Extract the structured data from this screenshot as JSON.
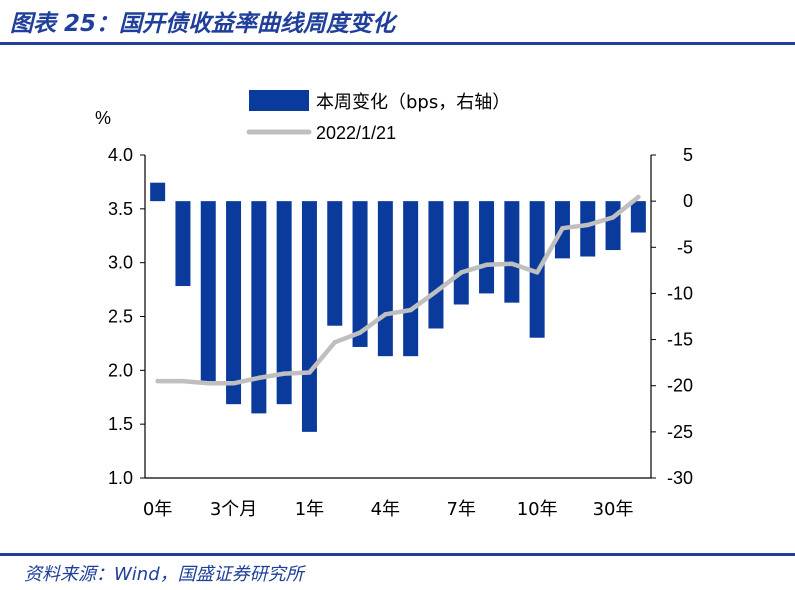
{
  "header": {
    "title": "图表 25：国开债收益率曲线周度变化"
  },
  "source": {
    "text": "资料来源：Wind，国盛证券研究所"
  },
  "colors": {
    "bar": "#0a3a9c",
    "line": "#bfbfbf",
    "rule": "#1f3f9a"
  },
  "chart_data": {
    "type": "bar",
    "title": "",
    "left_axis": {
      "unit_label": "%",
      "ylim": [
        1.0,
        4.0
      ],
      "ticks": [
        "1.0",
        "1.5",
        "2.0",
        "2.5",
        "3.0",
        "3.5",
        "4.0"
      ]
    },
    "right_axis": {
      "ylim": [
        -30,
        5
      ],
      "ticks": [
        "-30",
        "-25",
        "-20",
        "-15",
        "-10",
        "-5",
        "0",
        "5"
      ]
    },
    "x_tick_labels": [
      "0年",
      "3个月",
      "1年",
      "4年",
      "7年",
      "10年",
      "30年"
    ],
    "series": [
      {
        "name": "本周变化（bps，右轴）",
        "kind": "bar",
        "axis": "right",
        "values": [
          2.0,
          -9.2,
          -19.5,
          -22.0,
          -23.0,
          -22.0,
          -25.0,
          -13.5,
          -15.8,
          -16.8,
          -16.8,
          -13.8,
          -11.2,
          -10.0,
          -11.0,
          -14.8,
          -6.2,
          -6.0,
          -5.3,
          -3.4
        ]
      },
      {
        "name": "2022/1/21",
        "kind": "line",
        "axis": "left",
        "values": [
          1.9,
          1.9,
          1.88,
          1.88,
          1.93,
          1.97,
          1.98,
          2.26,
          2.35,
          2.52,
          2.56,
          2.73,
          2.91,
          2.98,
          2.99,
          2.91,
          3.32,
          3.35,
          3.42,
          3.61
        ]
      }
    ],
    "legend_position": "top"
  }
}
